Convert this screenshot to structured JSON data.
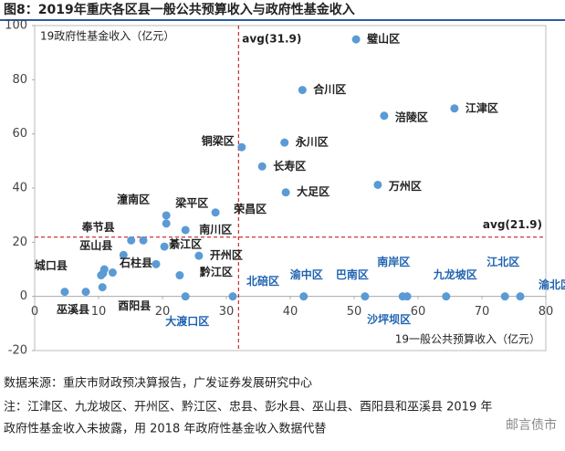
{
  "chart_data": {
    "type": "scatter",
    "title": "图8：2019年重庆各区县一般公共预算收入与政府性基金收入",
    "x_label": "19一般公共预算收入（亿元）",
    "y_label": "19政府性基金收入（亿元）",
    "color": "#5b9bd5",
    "label_color": "#222222",
    "zero_label_color": "#1f63b0",
    "xlim": [
      0,
      80
    ],
    "xticks": [
      0,
      10,
      20,
      30,
      40,
      50,
      60,
      70,
      80
    ],
    "ylim": [
      -20,
      100
    ],
    "yticks": [
      -20,
      0,
      20,
      40,
      60,
      80,
      100
    ],
    "avg_lines": [
      {
        "axis": "x",
        "value": 31.9,
        "label": "avg(31.9)",
        "color": "#c00000"
      },
      {
        "axis": "y",
        "value": 21.9,
        "label": "avg(21.9)",
        "color": "#c00000"
      }
    ],
    "labels": [
      "璧山区",
      "合川区",
      "涪陵区",
      "江津区",
      "铜梁区",
      "永川区",
      "长寿区",
      "大足区",
      "万州区",
      "潼南区",
      "梁平区",
      "荣昌区",
      "南川区",
      "奉节县",
      null,
      "綦江区",
      "开州区",
      "巫山县",
      "石柱县",
      "黔江区",
      "城口县",
      "巫溪县",
      "酉阳县",
      null,
      null,
      null,
      null,
      "北碚区",
      "大渡口区",
      "渝中区",
      "巴南区",
      "南岸区",
      "沙坪坝区",
      "九龙坡区",
      "江北区",
      "渝北区"
    ],
    "x": [
      50.3,
      41.9,
      54.7,
      65.7,
      32.4,
      39.1,
      35.6,
      39.3,
      53.7,
      20.6,
      20.6,
      28.3,
      23.6,
      15.1,
      17,
      20.3,
      25.7,
      13.9,
      19,
      22.7,
      4.7,
      8,
      10.6,
      10.7,
      10.4,
      12.2,
      10.9,
      31,
      23.6,
      42.1,
      51.7,
      57.6,
      58.3,
      64.4,
      73.6,
      76
    ],
    "y": [
      94.9,
      76.2,
      66.7,
      69.4,
      55.1,
      56.8,
      48,
      38.4,
      41.2,
      29.9,
      26.9,
      31,
      24.5,
      20.7,
      20.7,
      18.4,
      15,
      15.3,
      11.9,
      7.8,
      1.7,
      1.7,
      3.4,
      8.5,
      7.8,
      8.8,
      10,
      0,
      0,
      0,
      0,
      0,
      0,
      0,
      0,
      0
    ]
  },
  "notes": [
    "数据来源：重庆市财政预决算报告，广发证券发展研究中心",
    "注：江津区、九龙坡区、开州区、黔江区、忠县、彭水县、巫山县、酉阳县和巫溪县 2019 年",
    "政府性基金收入未披露，用 2018 年政府性基金收入数据代替"
  ],
  "watermark": "邮言债市"
}
